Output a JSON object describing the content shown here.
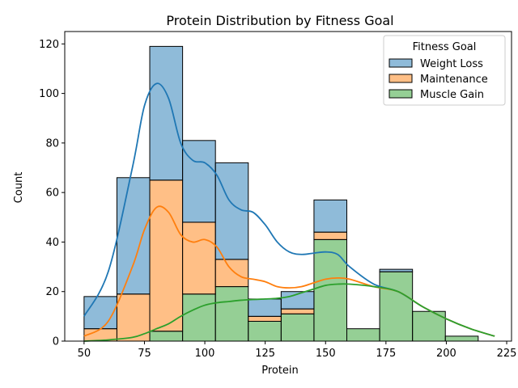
{
  "chart_data": {
    "type": "bar",
    "stacked": true,
    "title": "Protein Distribution by Fitness Goal",
    "xlabel": "Protein",
    "ylabel": "Count",
    "xlim": [
      42,
      227
    ],
    "ylim": [
      0,
      125
    ],
    "xticks": [
      50,
      75,
      100,
      125,
      150,
      175,
      200,
      225
    ],
    "yticks": [
      0,
      20,
      40,
      60,
      80,
      100,
      120
    ],
    "bin_edges": [
      50,
      63.6,
      77.2,
      90.8,
      104.4,
      118,
      131.6,
      145.2,
      158.8,
      172.4,
      186,
      199.6,
      213.2,
      226.8
    ],
    "legend": {
      "title": "Fitness Goal",
      "position": "top-right"
    },
    "series": [
      {
        "name": "Muscle Gain",
        "color": "#2ca02c",
        "values": [
          0,
          0,
          4,
          19,
          22,
          8,
          11,
          41,
          5,
          28,
          12,
          2,
          0
        ]
      },
      {
        "name": "Maintenance",
        "color": "#ff7f0e",
        "values": [
          5,
          19,
          61,
          29,
          11,
          2,
          2,
          3,
          0,
          0,
          0,
          0,
          0
        ]
      },
      {
        "name": "Weight Loss",
        "color": "#1f77b4",
        "values": [
          13,
          47,
          54,
          33,
          39,
          7,
          7,
          13,
          0,
          1,
          0,
          0,
          0
        ]
      }
    ],
    "legend_order": [
      "Weight Loss",
      "Maintenance",
      "Muscle Gain"
    ],
    "kde": [
      {
        "name": "Weight Loss",
        "color": "#1f77b4",
        "x": [
          50,
          60,
          70,
          75,
          80,
          85,
          90,
          95,
          100,
          105,
          110,
          115,
          120,
          125,
          130,
          135,
          140,
          145,
          150,
          155,
          160,
          170,
          180,
          190,
          200,
          210,
          220
        ],
        "y": [
          10,
          28,
          70,
          95,
          104,
          98,
          80,
          73,
          72,
          67,
          57,
          53,
          52,
          47,
          40,
          36,
          35,
          35.5,
          36,
          35,
          30,
          23,
          20,
          14,
          9,
          5,
          2
        ]
      },
      {
        "name": "Maintenance",
        "color": "#ff7f0e",
        "x": [
          50,
          60,
          70,
          75,
          80,
          85,
          90,
          95,
          100,
          105,
          110,
          115,
          120,
          125,
          130,
          135,
          140,
          145,
          150,
          155,
          160,
          170,
          180,
          190,
          200,
          210,
          220
        ],
        "y": [
          2,
          8,
          30,
          45,
          54,
          52,
          43,
          40,
          41,
          38,
          30,
          26,
          25,
          24,
          22,
          21.5,
          22,
          23.5,
          25,
          25.5,
          25,
          22,
          20,
          14,
          9,
          5,
          2
        ]
      },
      {
        "name": "Muscle Gain",
        "color": "#2ca02c",
        "x": [
          50,
          60,
          70,
          75,
          80,
          85,
          90,
          95,
          100,
          105,
          110,
          115,
          120,
          125,
          130,
          135,
          140,
          145,
          150,
          155,
          160,
          170,
          180,
          190,
          200,
          210,
          220
        ],
        "y": [
          0,
          0.5,
          1.5,
          3,
          5,
          7,
          10,
          12.5,
          14.5,
          15.5,
          16,
          16.5,
          16.8,
          17,
          17.3,
          18,
          19.5,
          21,
          22.5,
          23,
          23,
          22,
          20,
          14,
          9,
          5,
          2
        ]
      }
    ]
  }
}
